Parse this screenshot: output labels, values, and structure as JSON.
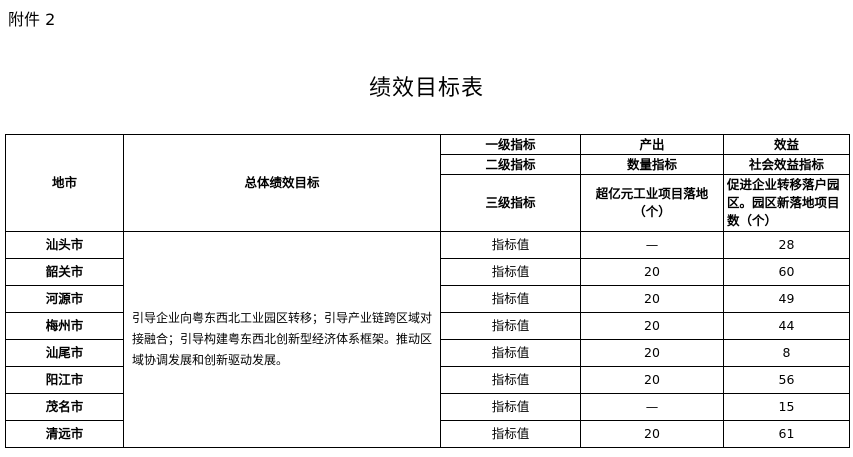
{
  "attachment_label": "附件 2",
  "title": "绩效目标表",
  "header": {
    "region": "地市",
    "overall_goal": "总体绩效目标",
    "level1": "一级指标",
    "level1_output": "产出",
    "level1_benefit": "效益",
    "level2": "二级指标",
    "level2_output": "数量指标",
    "level2_benefit": "社会效益指标",
    "level3": "三级指标",
    "level3_output": "超亿元工业项目落地（个）",
    "level3_benefit": "促进企业转移落户园区。园区新落地项目数（个）"
  },
  "overall_goal_text": "引导企业向粤东西北工业园区转移；引导产业链跨区域对接融合；引导构建粤东西北创新型经济体系框架。推动区域协调发展和创新驱动发展。",
  "rows": [
    {
      "city": "汕头市",
      "label": "指标值",
      "output": "—",
      "benefit": "28"
    },
    {
      "city": "韶关市",
      "label": "指标值",
      "output": "20",
      "benefit": "60"
    },
    {
      "city": "河源市",
      "label": "指标值",
      "output": "20",
      "benefit": "49"
    },
    {
      "city": "梅州市",
      "label": "指标值",
      "output": "20",
      "benefit": "44"
    },
    {
      "city": "汕尾市",
      "label": "指标值",
      "output": "20",
      "benefit": "8"
    },
    {
      "city": "阳江市",
      "label": "指标值",
      "output": "20",
      "benefit": "56"
    },
    {
      "city": "茂名市",
      "label": "指标值",
      "output": "—",
      "benefit": "15"
    },
    {
      "city": "清远市",
      "label": "指标值",
      "output": "20",
      "benefit": "61"
    }
  ]
}
